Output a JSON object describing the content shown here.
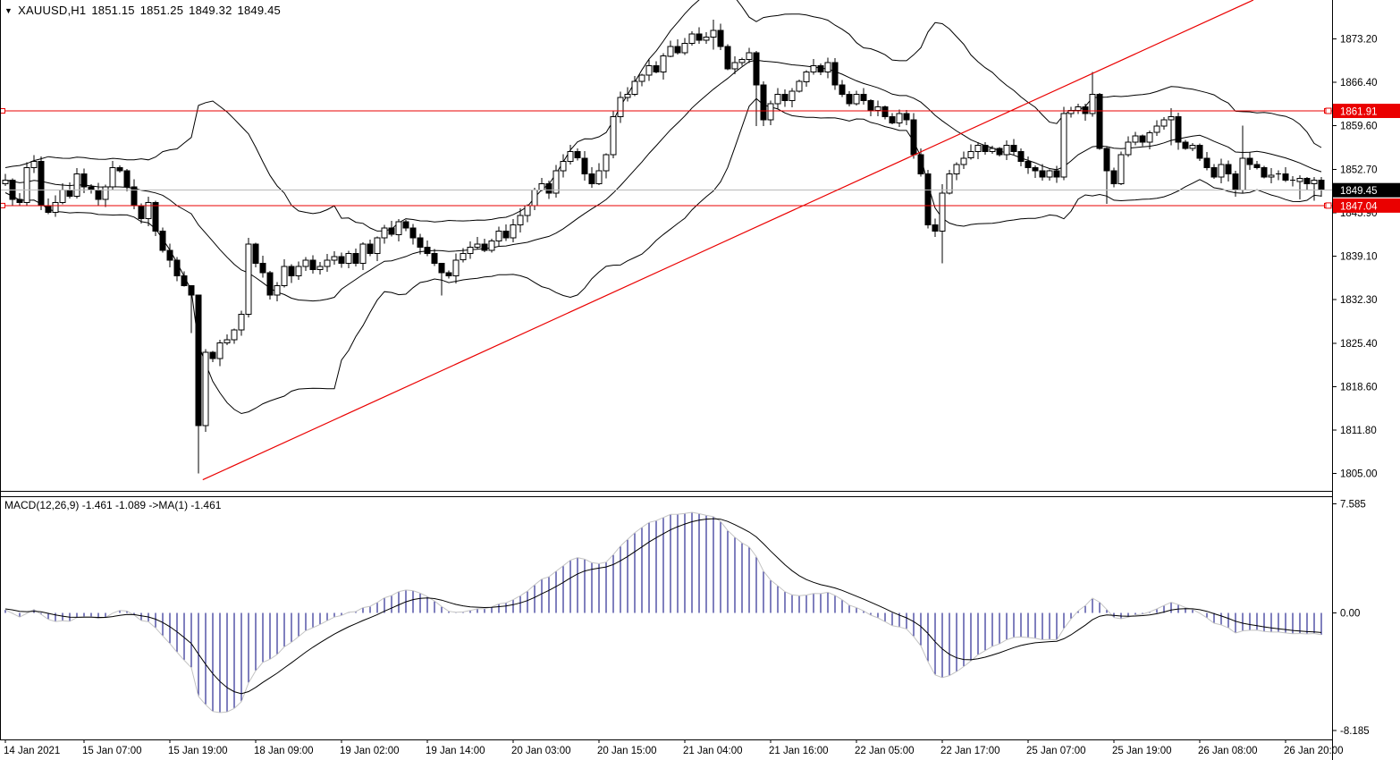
{
  "header": {
    "symbol_period": "XAUUSD,H1",
    "open": "1851.15",
    "high": "1851.25",
    "low": "1849.32",
    "close": "1849.45",
    "dropdown_icon": "▼"
  },
  "indicator_label": "MACD(12,26,9) -1.461 -1.089  ->MA(1) -1.461",
  "colors": {
    "bull": "#ffffff",
    "bear": "#000000",
    "outline": "#000000",
    "band": "#000000",
    "level_red": "#ea0000",
    "trend_red": "#ea0000",
    "last_price_line": "#b9b9b9",
    "last_price_box": "#000000",
    "hist": "#00007d",
    "hist_outline": "#c3c3c3",
    "signal": "#000000",
    "axis_text": "#000000"
  },
  "price_axis": {
    "ticks": [
      "1873.20",
      "1866.40",
      "1859.60",
      "1852.70",
      "1845.90",
      "1839.10",
      "1832.30",
      "1825.40",
      "1818.60",
      "1811.80",
      "1805.00"
    ],
    "boxes": [
      {
        "text": "1861.91",
        "type": "level"
      },
      {
        "text": "1849.45",
        "type": "last"
      },
      {
        "text": "1847.04",
        "type": "level"
      }
    ]
  },
  "macd_axis": {
    "ticks": [
      "7.585",
      "0.00",
      "-8.185"
    ]
  },
  "time_axis": {
    "labels": [
      {
        "text": "14 Jan 2021",
        "index": 0
      },
      {
        "text": "15 Jan 07:00",
        "index": 11
      },
      {
        "text": "15 Jan 19:00",
        "index": 23
      },
      {
        "text": "18 Jan 09:00",
        "index": 35
      },
      {
        "text": "19 Jan 02:00",
        "index": 47
      },
      {
        "text": "19 Jan 14:00",
        "index": 59
      },
      {
        "text": "20 Jan 03:00",
        "index": 71
      },
      {
        "text": "20 Jan 15:00",
        "index": 83
      },
      {
        "text": "21 Jan 04:00",
        "index": 95
      },
      {
        "text": "21 Jan 16:00",
        "index": 107
      },
      {
        "text": "22 Jan 05:00",
        "index": 119
      },
      {
        "text": "22 Jan 17:00",
        "index": 131
      },
      {
        "text": "25 Jan 07:00",
        "index": 143
      },
      {
        "text": "25 Jan 19:00",
        "index": 155
      },
      {
        "text": "26 Jan 08:00",
        "index": 167
      },
      {
        "text": "26 Jan 20:00",
        "index": 179
      }
    ]
  },
  "chart_data": {
    "type": "candlestick",
    "symbol": "XAUUSD",
    "timeframe": "H1",
    "price_ylim": [
      1802.3,
      1879.3
    ],
    "macd_ylim": [
      -8.8,
      8.05
    ],
    "grid": false,
    "levels": [
      1861.91,
      1847.04
    ],
    "last_price": 1849.45,
    "trendline": {
      "i1": 27.6,
      "p1": 1804.0,
      "i2": 174.5,
      "p2": 1879.3
    },
    "indicators": {
      "bollinger": {
        "period": 20,
        "deviation": 2
      },
      "macd": {
        "fast": 12,
        "slow": 26,
        "signal": 9,
        "values": [
          -1.461,
          -1.089
        ]
      }
    },
    "warmup_closes": [
      1850.0,
      1851.5,
      1852.0,
      1850.5,
      1849.0,
      1850.0,
      1851.0,
      1852.5,
      1851.5,
      1850.0,
      1849.5,
      1851.0,
      1852.0,
      1851.0,
      1850.5,
      1852.0,
      1853.0,
      1851.5,
      1850.5,
      1850.5
    ],
    "closes": [
      1851.0,
      1848.0,
      1847.5,
      1853.0,
      1854.0,
      1847.0,
      1846.0,
      1847.5,
      1849.5,
      1848.5,
      1852.0,
      1850.0,
      1849.5,
      1848.0,
      1850.0,
      1853.0,
      1852.5,
      1850.0,
      1847.0,
      1845.0,
      1847.5,
      1843.0,
      1840.0,
      1838.5,
      1836.0,
      1834.5,
      1833.0,
      1812.5,
      1824.0,
      1823.0,
      1825.5,
      1826.0,
      1827.5,
      1830.0,
      1841.0,
      1838.0,
      1836.5,
      1833.0,
      1834.5,
      1837.5,
      1836.0,
      1837.5,
      1838.5,
      1837.0,
      1837.5,
      1838.5,
      1839.0,
      1838.0,
      1839.5,
      1838.0,
      1841.0,
      1839.5,
      1842.0,
      1843.5,
      1842.5,
      1844.5,
      1843.5,
      1842.0,
      1840.5,
      1839.5,
      1838.0,
      1836.5,
      1836.0,
      1838.5,
      1839.5,
      1840.5,
      1841.0,
      1840.0,
      1841.5,
      1843.0,
      1842.0,
      1844.0,
      1845.5,
      1847.0,
      1849.5,
      1850.5,
      1849.0,
      1852.5,
      1854.0,
      1855.5,
      1854.5,
      1852.0,
      1850.5,
      1852.5,
      1855.0,
      1861.0,
      1864.0,
      1864.5,
      1866.5,
      1867.5,
      1869.0,
      1868.0,
      1870.5,
      1872.0,
      1871.0,
      1872.5,
      1874.0,
      1873.0,
      1873.5,
      1874.5,
      1872.0,
      1868.5,
      1869.5,
      1870.0,
      1871.0,
      1866.0,
      1860.5,
      1863.0,
      1864.5,
      1863.5,
      1865.0,
      1866.5,
      1868.0,
      1869.0,
      1868.0,
      1869.5,
      1866.0,
      1864.5,
      1863.0,
      1864.5,
      1863.5,
      1862.0,
      1862.5,
      1861.0,
      1860.0,
      1861.5,
      1860.5,
      1855.0,
      1852.0,
      1844.0,
      1843.0,
      1849.0,
      1852.0,
      1853.5,
      1854.5,
      1855.5,
      1856.5,
      1855.5,
      1856.0,
      1855.0,
      1856.5,
      1855.5,
      1854.0,
      1853.0,
      1852.5,
      1851.5,
      1852.5,
      1851.5,
      1861.5,
      1862.0,
      1862.5,
      1861.5,
      1864.5,
      1856.0,
      1852.5,
      1850.5,
      1855.0,
      1857.0,
      1858.0,
      1857.0,
      1858.5,
      1859.5,
      1860.5,
      1861.0,
      1857.0,
      1856.0,
      1856.5,
      1854.5,
      1853.0,
      1851.5,
      1853.5,
      1852.0,
      1849.5,
      1854.5,
      1853.5,
      1853.0,
      1851.5,
      1851.8,
      1852.0,
      1851.0,
      1850.8,
      1851.3,
      1850.5,
      1851.0,
      1849.45
    ],
    "wick_overrides": {
      "26": [
        1834.2,
        1827.0
      ],
      "27": [
        1827.0,
        1805.0
      ],
      "28": [
        1824.5,
        1811.5
      ],
      "34": [
        1842.0,
        1829.5
      ],
      "61": [
        1837.8,
        1832.9
      ],
      "85": [
        1862.0,
        1854.5
      ],
      "99": [
        1876.2,
        1871.5
      ],
      "105": [
        1871.3,
        1859.5
      ],
      "131": [
        1850.4,
        1838.0
      ],
      "148": [
        1862.5,
        1851.0
      ],
      "152": [
        1868.0,
        1861.0
      ],
      "154": [
        1856.2,
        1847.3
      ],
      "163": [
        1862.3,
        1856.5
      ],
      "173": [
        1859.6,
        1849.0
      ],
      "181": [
        1851.8,
        1848.0
      ],
      "183": [
        1851.5,
        1847.8
      ]
    }
  }
}
